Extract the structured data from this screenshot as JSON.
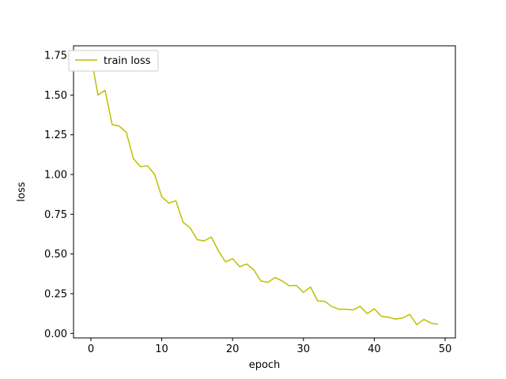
{
  "chart_data": {
    "type": "line",
    "title": "",
    "xlabel": "epoch",
    "ylabel": "loss",
    "xlim": [
      -2.45,
      51.45
    ],
    "ylim": [
      -0.0285,
      1.81
    ],
    "x_ticks": [
      0,
      10,
      20,
      30,
      40,
      50
    ],
    "x_tick_labels": [
      "0",
      "10",
      "20",
      "30",
      "40",
      "50"
    ],
    "y_ticks": [
      0.0,
      0.25,
      0.5,
      0.75,
      1.0,
      1.25,
      1.5,
      1.75
    ],
    "y_tick_labels": [
      "0.00",
      "0.25",
      "0.50",
      "0.75",
      "1.00",
      "1.25",
      "1.50",
      "1.75"
    ],
    "grid": false,
    "legend_position": "upper left",
    "series": [
      {
        "name": "train loss",
        "color": "#bfbf00",
        "x": [
          0,
          1,
          2,
          3,
          4,
          5,
          6,
          7,
          8,
          9,
          10,
          11,
          12,
          13,
          14,
          15,
          16,
          17,
          18,
          19,
          20,
          21,
          22,
          23,
          24,
          25,
          26,
          27,
          28,
          29,
          30,
          31,
          32,
          33,
          34,
          35,
          36,
          37,
          38,
          39,
          40,
          41,
          42,
          43,
          44,
          45,
          46,
          47,
          48,
          49
        ],
        "y": [
          1.75,
          1.5,
          1.53,
          1.315,
          1.305,
          1.265,
          1.1,
          1.05,
          1.055,
          1.0,
          0.86,
          0.82,
          0.835,
          0.7,
          0.665,
          0.59,
          0.582,
          0.607,
          0.52,
          0.45,
          0.47,
          0.42,
          0.437,
          0.4,
          0.33,
          0.322,
          0.352,
          0.33,
          0.3,
          0.302,
          0.258,
          0.292,
          0.205,
          0.202,
          0.17,
          0.152,
          0.152,
          0.148,
          0.17,
          0.125,
          0.155,
          0.108,
          0.102,
          0.09,
          0.097,
          0.12,
          0.055,
          0.088,
          0.065,
          0.058
        ]
      }
    ]
  }
}
